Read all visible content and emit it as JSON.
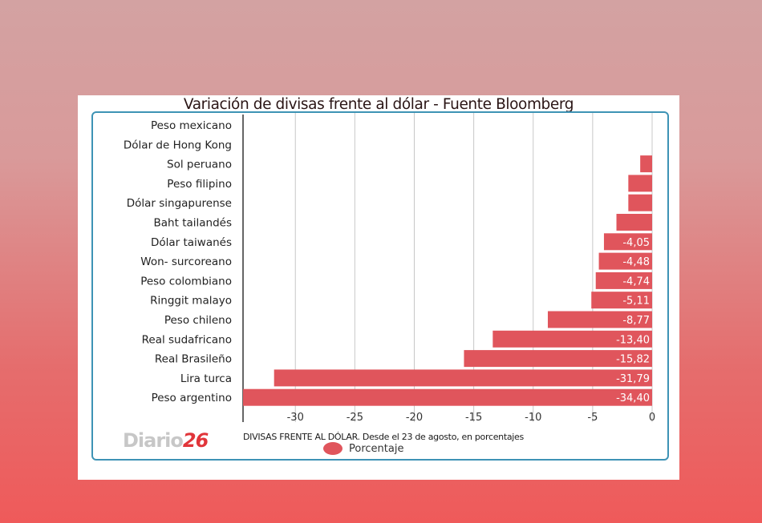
{
  "title": "Variación de divisas frente al dólar - Fuente Bloomberg",
  "logo": {
    "word": "Diario",
    "number": "26"
  },
  "caption": "DIVISAS FRENTE AL DÓLAR. Desde el 23 de agosto, en porcentajes",
  "colors": {
    "bar": "#e0555c",
    "frame": "#3e93b5",
    "grid": "#c8c8c8"
  },
  "chart_data": {
    "type": "bar",
    "orientation": "horizontal",
    "title": "Variación de divisas frente al dólar - Fuente Bloomberg",
    "categories": [
      "Peso mexicano",
      "Dólar de Hong Kong",
      "Sol peruano",
      "Peso filipino",
      "Dólar singapurense",
      "Baht tailandés",
      "Dólar taiwanés",
      "Won- surcoreano",
      "Peso colombiano",
      "Ringgit malayo",
      "Peso chileno",
      "Real sudafricano",
      "Real Brasileño",
      "Lira turca",
      "Peso argentino"
    ],
    "series": [
      {
        "name": "Porcentaje",
        "values": [
          0,
          0,
          -1.0,
          -2.0,
          -2.0,
          -3.0,
          -4.05,
          -4.48,
          -4.74,
          -5.11,
          -8.77,
          -13.4,
          -15.82,
          -31.79,
          -34.4
        ],
        "labels": [
          "",
          "",
          "",
          "",
          "",
          "",
          "-4,05",
          "-4,48",
          "-4,74",
          "-5,11",
          "-8,77",
          "-13,40",
          "-15,82",
          "-31,79",
          "-34,40"
        ]
      }
    ],
    "xlim": [
      -34.4,
      0
    ],
    "xticks": [
      -30,
      -25,
      -20,
      -15,
      -10,
      -5,
      0
    ],
    "xtick_labels": [
      "-30",
      "-25",
      "-20",
      "-15",
      "-10",
      "-5",
      "0"
    ],
    "grid": true,
    "legend": "bottom"
  }
}
